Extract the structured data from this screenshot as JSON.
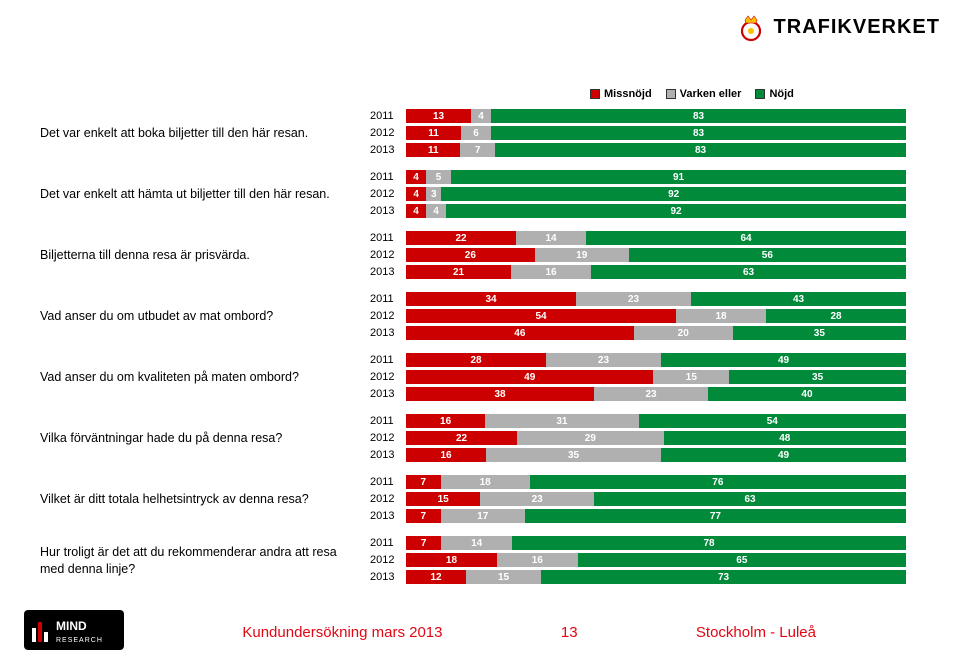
{
  "brand": {
    "name": "TRAFIKVERKET"
  },
  "legend": {
    "items": [
      {
        "label": "Missnöjd",
        "color": "#cc0000"
      },
      {
        "label": "Varken eller",
        "color": "#b0b0b0"
      },
      {
        "label": "Nöjd",
        "color": "#008a3a"
      }
    ]
  },
  "chart": {
    "segment_colors": {
      "missnojd": "#cc0000",
      "varken": "#b0b0b0",
      "nojd": "#008a3a"
    },
    "label_fontsize": 10,
    "questions": [
      {
        "label": "Det var enkelt att boka biljetter till den här resan.",
        "years": [
          {
            "year": "2011",
            "values": [
              13,
              4,
              83
            ]
          },
          {
            "year": "2012",
            "values": [
              11,
              6,
              83
            ]
          },
          {
            "year": "2013",
            "values": [
              11,
              7,
              83
            ]
          }
        ]
      },
      {
        "label": "Det var enkelt att hämta ut biljetter till den här resan.",
        "years": [
          {
            "year": "2011",
            "values": [
              4,
              5,
              91
            ]
          },
          {
            "year": "2012",
            "values": [
              4,
              3,
              92
            ]
          },
          {
            "year": "2013",
            "values": [
              4,
              4,
              92
            ]
          }
        ]
      },
      {
        "label": "Biljetterna till denna resa är prisvärda.",
        "years": [
          {
            "year": "2011",
            "values": [
              22,
              14,
              64
            ]
          },
          {
            "year": "2012",
            "values": [
              26,
              19,
              56
            ]
          },
          {
            "year": "2013",
            "values": [
              21,
              16,
              63
            ]
          }
        ]
      },
      {
        "label": "Vad anser du om utbudet av mat ombord?",
        "years": [
          {
            "year": "2011",
            "values": [
              34,
              23,
              43
            ]
          },
          {
            "year": "2012",
            "values": [
              54,
              18,
              28
            ]
          },
          {
            "year": "2013",
            "values": [
              46,
              20,
              35
            ]
          }
        ]
      },
      {
        "label": "Vad anser du om kvaliteten på maten ombord?",
        "years": [
          {
            "year": "2011",
            "values": [
              28,
              23,
              49
            ]
          },
          {
            "year": "2012",
            "values": [
              49,
              15,
              35
            ]
          },
          {
            "year": "2013",
            "values": [
              38,
              23,
              40
            ]
          }
        ]
      },
      {
        "label": "Vilka förväntningar hade du på denna resa?",
        "years": [
          {
            "year": "2011",
            "values": [
              16,
              31,
              54
            ]
          },
          {
            "year": "2012",
            "values": [
              22,
              29,
              48
            ]
          },
          {
            "year": "2013",
            "values": [
              16,
              35,
              49
            ]
          }
        ]
      },
      {
        "label": "Vilket är ditt totala helhetsintryck av denna resa?",
        "years": [
          {
            "year": "2011",
            "values": [
              7,
              18,
              76
            ]
          },
          {
            "year": "2012",
            "values": [
              15,
              23,
              63
            ]
          },
          {
            "year": "2013",
            "values": [
              7,
              17,
              77
            ]
          }
        ]
      },
      {
        "label": "Hur troligt är det att du rekommenderar andra att resa med denna linje?",
        "years": [
          {
            "year": "2011",
            "values": [
              7,
              14,
              78
            ]
          },
          {
            "year": "2012",
            "values": [
              18,
              16,
              65
            ]
          },
          {
            "year": "2013",
            "values": [
              12,
              15,
              73
            ]
          }
        ]
      }
    ]
  },
  "footer": {
    "title": "Kundundersökning mars 2013",
    "page": "13",
    "route": "Stockholm - Luleå",
    "mind_logo": "MIND RESEARCH"
  }
}
